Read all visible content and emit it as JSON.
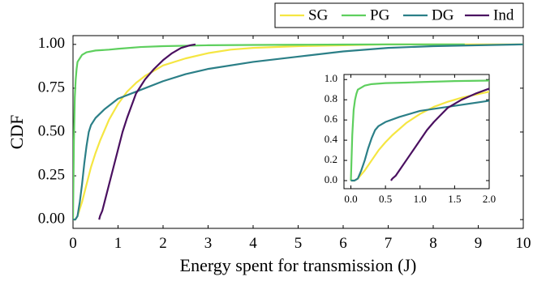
{
  "chart_data": {
    "type": "line",
    "xlabel": "Energy spent for transmission (J)",
    "ylabel": "CDF",
    "xlim": [
      0,
      10
    ],
    "ylim": [
      -0.05,
      1.05
    ],
    "x_ticks": [
      "0",
      "1",
      "2",
      "3",
      "4",
      "5",
      "6",
      "7",
      "8",
      "9",
      "10"
    ],
    "y_ticks": [
      "0.00",
      "0.25",
      "0.50",
      "0.75",
      "1.00"
    ],
    "grid": false,
    "legend_position": "top-right, outside",
    "series": [
      {
        "name": "SG",
        "color": "#f5e642",
        "x": [
          0,
          0.05,
          0.1,
          0.2,
          0.3,
          0.4,
          0.5,
          0.6,
          0.8,
          1.0,
          1.2,
          1.4,
          1.6,
          1.8,
          2.0,
          2.5,
          3.0,
          3.5,
          4.0,
          5.0,
          6.0,
          7.0,
          8.0,
          9.0,
          10.0
        ],
        "y": [
          0.0,
          0.0,
          0.02,
          0.1,
          0.2,
          0.3,
          0.38,
          0.45,
          0.57,
          0.66,
          0.73,
          0.78,
          0.82,
          0.85,
          0.88,
          0.92,
          0.95,
          0.97,
          0.98,
          0.99,
          0.995,
          1.0,
          1.0,
          1.0,
          1.0
        ]
      },
      {
        "name": "PG",
        "color": "#5ecf5e",
        "x": [
          0,
          0.02,
          0.04,
          0.06,
          0.08,
          0.1,
          0.15,
          0.2,
          0.3,
          0.5,
          0.8,
          1.0,
          1.5,
          2.0,
          3.0,
          4.0,
          5.0,
          6.0,
          7.0,
          8.0,
          8.7
        ],
        "y": [
          0.0,
          0.45,
          0.7,
          0.8,
          0.86,
          0.9,
          0.92,
          0.94,
          0.955,
          0.965,
          0.97,
          0.975,
          0.985,
          0.99,
          0.995,
          0.997,
          0.998,
          0.999,
          1.0,
          1.0,
          1.0
        ]
      },
      {
        "name": "DG",
        "color": "#2b7f87",
        "x": [
          0,
          0.05,
          0.1,
          0.15,
          0.2,
          0.25,
          0.3,
          0.35,
          0.4,
          0.5,
          0.7,
          1.0,
          1.5,
          2.0,
          2.5,
          3.0,
          4.0,
          5.0,
          6.0,
          7.0,
          8.0,
          9.0,
          10.0
        ],
        "y": [
          0.0,
          0.0,
          0.02,
          0.1,
          0.2,
          0.32,
          0.42,
          0.5,
          0.54,
          0.58,
          0.63,
          0.69,
          0.74,
          0.79,
          0.83,
          0.86,
          0.9,
          0.93,
          0.96,
          0.98,
          0.99,
          0.995,
          1.0
        ]
      },
      {
        "name": "Ind",
        "color": "#4a1060",
        "x": [
          0.58,
          0.6,
          0.65,
          0.7,
          0.8,
          0.9,
          1.0,
          1.1,
          1.2,
          1.3,
          1.4,
          1.5,
          1.6,
          1.8,
          2.0,
          2.2,
          2.4,
          2.6,
          2.72
        ],
        "y": [
          0.0,
          0.02,
          0.05,
          0.1,
          0.2,
          0.3,
          0.4,
          0.5,
          0.58,
          0.65,
          0.72,
          0.76,
          0.8,
          0.86,
          0.91,
          0.95,
          0.98,
          0.995,
          1.0
        ]
      }
    ],
    "inset": {
      "xlim": [
        -0.1,
        2.0
      ],
      "ylim": [
        -0.08,
        1.05
      ],
      "x_ticks": [
        "0.0",
        "0.5",
        "1.0",
        "1.5",
        "2.0"
      ],
      "y_ticks": [
        "0.0",
        "0.2",
        "0.4",
        "0.6",
        "0.8",
        "1.0"
      ]
    }
  }
}
